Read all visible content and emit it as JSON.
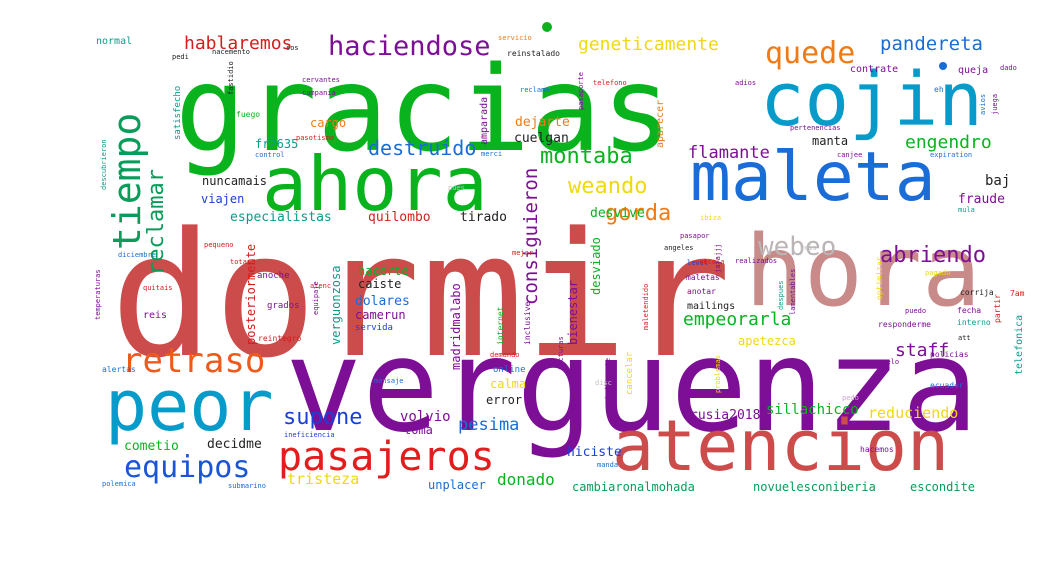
{
  "words": [
    {
      "text": "dormir",
      "color": "#cc4c4c"
    },
    {
      "text": "verguenza",
      "color": "#7d0e96"
    },
    {
      "text": "gracias",
      "color": "#09b31e"
    },
    {
      "text": "hora",
      "color": "#c98a8a"
    },
    {
      "text": "ahora",
      "color": "#09b31e"
    },
    {
      "text": "cojin",
      "color": "#069bc9"
    },
    {
      "text": "maleta",
      "color": "#1a6dd6"
    },
    {
      "text": "atencion",
      "color": "#cc4c4c"
    },
    {
      "text": "peor",
      "color": "#069bc9"
    },
    {
      "text": "pasajeros",
      "color": "#e31d1d"
    },
    {
      "text": "retraso",
      "color": "#ee5a1b"
    },
    {
      "text": "tiempo",
      "color": "#0a9c5a"
    },
    {
      "text": "equipos",
      "color": "#1a55d6"
    },
    {
      "text": "webeo",
      "color": "#bcb5b5"
    },
    {
      "text": "quede",
      "color": "#f07b16"
    },
    {
      "text": "haciendose",
      "color": "#7d0e96"
    },
    {
      "text": "abriendo",
      "color": "#7d0e96"
    },
    {
      "text": "supone",
      "color": "#1a3fd6"
    },
    {
      "text": "reclamar",
      "color": "#0a9c5a"
    },
    {
      "text": "montaba",
      "color": "#09b31e"
    },
    {
      "text": "weando",
      "color": "#f0d812"
    },
    {
      "text": "gorda",
      "color": "#f07b16"
    },
    {
      "text": "destruido",
      "color": "#1a6dd6"
    },
    {
      "text": "pandereta",
      "color": "#1a6dd6"
    },
    {
      "text": "geneticamente",
      "color": "#f0d812"
    },
    {
      "text": "hablaremos",
      "color": "#d41d1d"
    },
    {
      "text": "engendro",
      "color": "#09b31e"
    },
    {
      "text": "flamante",
      "color": "#7d0e96"
    },
    {
      "text": "consiguieron",
      "color": "#7d0e96"
    },
    {
      "text": "empeorarla",
      "color": "#09b31e"
    },
    {
      "text": "staff",
      "color": "#7d0e96"
    },
    {
      "text": "pesima",
      "color": "#1a6dd6"
    },
    {
      "text": "tristeza",
      "color": "#f0d812"
    },
    {
      "text": "donado",
      "color": "#09b31e"
    },
    {
      "text": "reduciendo",
      "color": "#f0d812"
    },
    {
      "text": "sillachicco",
      "color": "#09b31e"
    },
    {
      "text": "rusia2018",
      "color": "#7d0e96"
    },
    {
      "text": "volvio",
      "color": "#7d0e96"
    },
    {
      "text": "toma",
      "color": "#7d0e96"
    },
    {
      "text": "decidme",
      "color": "#222222"
    },
    {
      "text": "cometio",
      "color": "#09b31e"
    },
    {
      "text": "hiciste",
      "color": "#1a3fd6"
    },
    {
      "text": "unplacer",
      "color": "#1a6dd6"
    },
    {
      "text": "cambiaronalmohada",
      "color": "#0a9c5a"
    },
    {
      "text": "novuelesconiberia",
      "color": "#0a9c5a"
    },
    {
      "text": "escondite",
      "color": "#0a9c5a"
    },
    {
      "text": "baj",
      "color": "#222222"
    },
    {
      "text": "fraude",
      "color": "#7d0e96"
    },
    {
      "text": "especialistas",
      "color": "#0a9c8a"
    },
    {
      "text": "quilombo",
      "color": "#d41d1d"
    },
    {
      "text": "tirado",
      "color": "#222222"
    },
    {
      "text": "desvive",
      "color": "#09b31e"
    },
    {
      "text": "dejarte",
      "color": "#f07b16"
    },
    {
      "text": "cuelgan",
      "color": "#222222"
    },
    {
      "text": "cargo",
      "color": "#f07b16"
    },
    {
      "text": "manta",
      "color": "#222222"
    },
    {
      "text": "fr2635",
      "color": "#0a9c8a"
    },
    {
      "text": "nuncamais",
      "color": "#222222"
    },
    {
      "text": "viajen",
      "color": "#1a3fd6"
    },
    {
      "text": "hacerte",
      "color": "#09b31e"
    },
    {
      "text": "caiste",
      "color": "#222222"
    },
    {
      "text": "dolares",
      "color": "#1a6dd6"
    },
    {
      "text": "camerun",
      "color": "#7d0e96"
    },
    {
      "text": "servida",
      "color": "#1a3fd6"
    },
    {
      "text": "madridmalabo",
      "color": "#7d0e96"
    },
    {
      "text": "bienestar",
      "color": "#7d0e96"
    },
    {
      "text": "desviado",
      "color": "#09b31e"
    },
    {
      "text": "apetezca",
      "color": "#f0d812"
    },
    {
      "text": "posteriormente",
      "color": "#d41d1d"
    },
    {
      "text": "verguonzosa",
      "color": "#0a9c8a"
    },
    {
      "text": "calma",
      "color": "#f0d812"
    },
    {
      "text": "error",
      "color": "#222222"
    },
    {
      "text": "online",
      "color": "#1a6dd6"
    },
    {
      "text": "normal",
      "color": "#0a9c8a"
    },
    {
      "text": "satisfecho",
      "color": "#0a9c8a"
    },
    {
      "text": "amparada",
      "color": "#7d0e96"
    },
    {
      "text": "aparecer",
      "color": "#f07b16"
    },
    {
      "text": "contrate",
      "color": "#7d0e96"
    },
    {
      "text": "queja",
      "color": "#7d0e96"
    },
    {
      "text": "reinstalado",
      "color": "#222222"
    },
    {
      "text": "telefono",
      "color": "#d41d1d"
    },
    {
      "text": "adios",
      "color": "#7d0e96"
    },
    {
      "text": "telefonica",
      "color": "#0a9c8a"
    },
    {
      "text": "alertas",
      "color": "#1a6dd6"
    },
    {
      "text": "reis",
      "color": "#7d0e96"
    },
    {
      "text": "anoche",
      "color": "#7d0e96"
    },
    {
      "text": "grados",
      "color": "#7d0e96"
    },
    {
      "text": "reintegro",
      "color": "#d41d1d"
    },
    {
      "text": "internet",
      "color": "#09b31e"
    },
    {
      "text": "inclusive",
      "color": "#7d0e96"
    },
    {
      "text": "maletas",
      "color": "#7d0e96"
    },
    {
      "text": "anotar",
      "color": "#7d0e96"
    },
    {
      "text": "mailings",
      "color": "#222222"
    },
    {
      "text": "policias",
      "color": "#7d0e96"
    },
    {
      "text": "ecuador",
      "color": "#1a6dd6"
    },
    {
      "text": "cancelar",
      "color": "#f0d812"
    },
    {
      "text": "pedo",
      "color": "#d4a0d4"
    },
    {
      "text": "corrija",
      "color": "#222222"
    },
    {
      "text": "fecha",
      "color": "#7d0e96"
    },
    {
      "text": "partir",
      "color": "#d41d1d"
    },
    {
      "text": "interno",
      "color": "#0a9c8a"
    },
    {
      "text": "pagado",
      "color": "#f0d812"
    },
    {
      "text": "7am",
      "color": "#d41d1d"
    },
    {
      "text": "responderme",
      "color": "#7d0e96"
    },
    {
      "text": "optimizar",
      "color": "#f0d812"
    },
    {
      "text": "level",
      "color": "#1a3fd6"
    },
    {
      "text": "ineficiencia",
      "color": "#1a3fd6"
    },
    {
      "text": "polemica",
      "color": "#1a6dd6"
    },
    {
      "text": "submarino",
      "color": "#1a6dd6"
    },
    {
      "text": "manda",
      "color": "#1a6dd6"
    },
    {
      "text": "mensaje",
      "color": "#1a6dd6"
    },
    {
      "text": "indignante",
      "color": "#7d0e96"
    },
    {
      "text": "problemas",
      "color": "#f0d812"
    },
    {
      "text": "suelo",
      "color": "#7d0e96"
    },
    {
      "text": "hacemos",
      "color": "#7d0e96"
    },
    {
      "text": "despues",
      "color": "#0a9c8a"
    },
    {
      "text": "lamentables",
      "color": "#7d0e96"
    },
    {
      "text": "puedo",
      "color": "#7d0e96"
    },
    {
      "text": "realizados",
      "color": "#7d0e96"
    },
    {
      "text": "cancela",
      "color": "#d41d1d"
    },
    {
      "text": "angeles",
      "color": "#222222"
    },
    {
      "text": "totana",
      "color": "#d41d1d"
    },
    {
      "text": "pequeno",
      "color": "#d41d1d"
    },
    {
      "text": "diciembre",
      "color": "#1a6dd6"
    },
    {
      "text": "temperaturas",
      "color": "#7d0e96"
    },
    {
      "text": "mejor",
      "color": "#d41d1d"
    },
    {
      "text": "pasotismo",
      "color": "#d41d1d"
    },
    {
      "text": "control",
      "color": "#1a6dd6"
    },
    {
      "text": "merci",
      "color": "#1a6dd6"
    },
    {
      "text": "fuego",
      "color": "#09b31e"
    },
    {
      "text": "fastidio",
      "color": "#222222"
    },
    {
      "text": "cervantes",
      "color": "#7d0e96"
    },
    {
      "text": "compania",
      "color": "#7d0e96"
    },
    {
      "text": "ibiza",
      "color": "#f0d812"
    },
    {
      "text": "pertenencias",
      "color": "#7d0e96"
    },
    {
      "text": "canjee",
      "color": "#7d0e96"
    },
    {
      "text": "expiration",
      "color": "#1a6dd6"
    },
    {
      "text": "avios",
      "color": "#1a6dd6"
    },
    {
      "text": "juega",
      "color": "#7d0e96"
    },
    {
      "text": "dado",
      "color": "#7d0e96"
    },
    {
      "text": "mula",
      "color": "#0a9c8a"
    },
    {
      "text": "pasaporte",
      "color": "#7d0e96"
    },
    {
      "text": "facturas",
      "color": "#7d0e96"
    },
    {
      "text": "jajajjj",
      "color": "#7d0e96"
    },
    {
      "text": "maletendido",
      "color": "#d41d1d"
    },
    {
      "text": "demando",
      "color": "#d41d1d"
    },
    {
      "text": "reclamo",
      "color": "#1a6dd6"
    },
    {
      "text": "servicio",
      "color": "#f07b16"
    },
    {
      "text": "descubrieron",
      "color": "#0a9c8a"
    },
    {
      "text": "pedi",
      "color": "#222222"
    },
    {
      "text": "nacemento",
      "color": "#222222"
    },
    {
      "text": "eh",
      "color": "#1a6dd6"
    },
    {
      "text": "att",
      "color": "#222222"
    },
    {
      "text": "quitais",
      "color": "#d41d1d"
    },
    {
      "text": "atenc",
      "color": "#d41d1d"
    },
    {
      "text": "equipaje",
      "color": "#7d0e96"
    },
    {
      "text": "pues",
      "color": "#c0c0c0"
    },
    {
      "text": "veis",
      "color": "#c0c0c0"
    },
    {
      "text": "sos",
      "color": "#222222"
    },
    {
      "text": "disc",
      "color": "#c0c0c0"
    },
    {
      "text": "mula",
      "color": "#0a9c8a"
    },
    {
      "text": "pasapor",
      "color": "#7d0e96"
    }
  ]
}
